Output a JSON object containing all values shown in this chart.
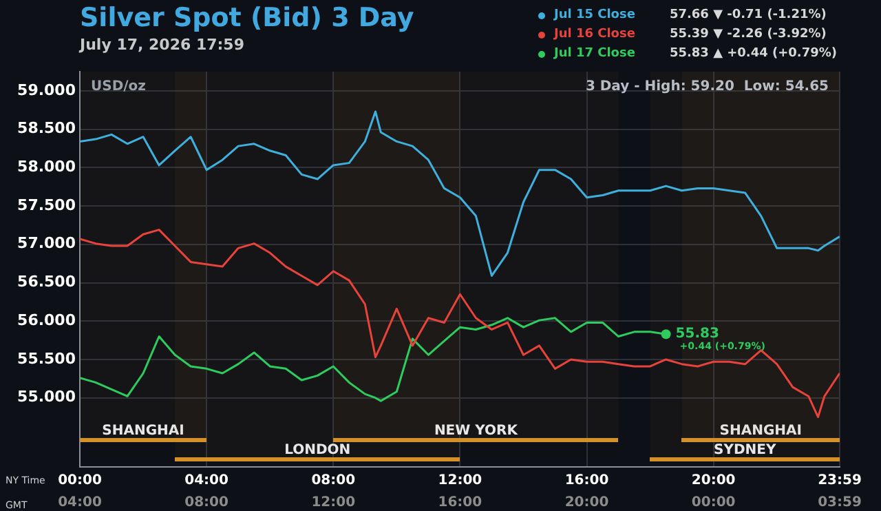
{
  "chart_data": {
    "type": "line",
    "title": "Silver Spot (Bid) 3 Day",
    "subtitle": "July 17, 2026 17:59",
    "xlabel": "NY Time",
    "x2label": "GMT",
    "x": [
      0,
      0.5,
      1,
      1.5,
      2,
      2.5,
      3,
      3.5,
      4,
      4.5,
      5,
      5.5,
      6,
      6.5,
      7,
      7.5,
      8,
      8.5,
      9,
      9.33,
      9.5,
      10,
      10.5,
      11,
      11.5,
      12,
      12.5,
      13,
      13.5,
      14,
      14.5,
      15,
      15.5,
      16,
      16.5,
      17,
      17.5,
      18,
      18.5,
      19,
      19.5,
      20,
      20.5,
      21,
      21.5,
      22,
      22.5,
      23,
      23.3,
      23.5,
      23.98
    ],
    "series": [
      {
        "name": "Jul 15 Close",
        "color": "#3fb0dd",
        "values": [
          58.34,
          58.37,
          58.43,
          58.31,
          58.4,
          58.03,
          58.22,
          58.4,
          57.97,
          58.1,
          58.28,
          58.31,
          58.22,
          58.16,
          57.91,
          57.85,
          58.03,
          58.06,
          58.34,
          58.73,
          58.46,
          58.34,
          58.28,
          58.1,
          57.73,
          57.61,
          57.37,
          56.59,
          56.89,
          57.55,
          57.97,
          57.97,
          57.85,
          57.61,
          57.64,
          57.7,
          57.7,
          57.7,
          57.76,
          57.7,
          57.73,
          57.73,
          57.7,
          57.67,
          57.37,
          56.95,
          56.95,
          56.95,
          56.92,
          56.98,
          57.1
        ]
      },
      {
        "name": "Jul 16 Close",
        "color": "#e8433b",
        "values": [
          57.07,
          57.01,
          56.98,
          56.98,
          57.13,
          57.19,
          56.98,
          56.77,
          56.74,
          56.71,
          56.95,
          57.01,
          56.89,
          56.71,
          56.59,
          56.47,
          56.65,
          56.53,
          56.22,
          55.53,
          55.68,
          56.16,
          55.68,
          56.04,
          55.98,
          56.35,
          56.04,
          55.89,
          55.98,
          55.56,
          55.68,
          55.38,
          55.5,
          55.47,
          55.47,
          55.44,
          55.41,
          55.41,
          55.5,
          55.44,
          55.41,
          55.47,
          55.47,
          55.44,
          55.62,
          55.44,
          55.14,
          55.02,
          54.75,
          55.02,
          55.32
        ]
      },
      {
        "name": "Jul 17 Close",
        "color": "#2ecc5e",
        "values": [
          55.26,
          55.2,
          55.11,
          55.02,
          55.32,
          55.8,
          55.56,
          55.41,
          55.38,
          55.32,
          55.44,
          55.59,
          55.41,
          55.38,
          55.23,
          55.29,
          55.41,
          55.2,
          55.05,
          55.0,
          54.96,
          55.08,
          55.77,
          55.56,
          55.74,
          55.92,
          55.89,
          55.95,
          56.04,
          55.92,
          56.01,
          56.04,
          55.86,
          55.98,
          55.98,
          55.8,
          55.86,
          55.86,
          55.83,
          null,
          null,
          null,
          null,
          null,
          null,
          null,
          null,
          null,
          null,
          null,
          null
        ]
      }
    ],
    "xlim": [
      0,
      23.983
    ],
    "xticks": [
      {
        "value": 0,
        "label": "00:00"
      },
      {
        "value": 4,
        "label": "04:00"
      },
      {
        "value": 8,
        "label": "08:00"
      },
      {
        "value": 12,
        "label": "12:00"
      },
      {
        "value": 16,
        "label": "16:00"
      },
      {
        "value": 20,
        "label": "20:00"
      },
      {
        "value": 23.983,
        "label": "23:59"
      }
    ],
    "x2lim": [
      "2026-07-17T04:00",
      "2026-07-18T03:59"
    ],
    "x2ticks": [
      {
        "value": "2026-07-17T04:00",
        "label": "04:00"
      },
      {
        "value": "2026-07-17T08:00",
        "label": "08:00"
      },
      {
        "value": "2026-07-17T12:00",
        "label": "12:00"
      },
      {
        "value": "2026-07-17T16:00",
        "label": "16:00"
      },
      {
        "value": "2026-07-17T20:00",
        "label": "20:00"
      },
      {
        "value": "2026-07-18T00:00",
        "label": "00:00"
      },
      {
        "value": "2026-07-18T03:59",
        "label": "03:59"
      }
    ],
    "ylim": [
      54.1,
      59.25
    ],
    "yticks": [
      {
        "value": 55,
        "label": "55.000"
      },
      {
        "value": 55.5,
        "label": "55.500"
      },
      {
        "value": 56,
        "label": "56.000"
      },
      {
        "value": 56.5,
        "label": "56.500"
      },
      {
        "value": 57,
        "label": "57.000"
      },
      {
        "value": 57.5,
        "label": "57.500"
      },
      {
        "value": 58,
        "label": "58.000"
      },
      {
        "value": 58.5,
        "label": "58.500"
      },
      {
        "value": 59,
        "label": "59.000"
      }
    ],
    "bands": [
      {
        "axis": "x",
        "from": 0,
        "to": 4,
        "label": "SHANGHAI",
        "color": "#d4912a"
      },
      {
        "axis": "x",
        "from": 3,
        "to": 12,
        "label": "LONDON",
        "color": "#d4912a"
      },
      {
        "axis": "x",
        "from": 8,
        "to": 17,
        "label": "NEW YORK",
        "color": "#d4912a"
      },
      {
        "axis": "x",
        "from": 19,
        "to": 23.983,
        "label": "SHANGHAI",
        "color": "#d4912a"
      },
      {
        "axis": "x",
        "from": 18,
        "to": 23.983,
        "label": "SYDNEY",
        "color": "#d4912a"
      }
    ],
    "annotations": [
      "USD/oz",
      "3 Day - High: 59.20  Low: 54.65",
      {
        "text": "55.83",
        "x": 18.5,
        "y": 55.83
      },
      {
        "text": "+0.44 (+0.79%)",
        "x": 18.5,
        "y": 55.83
      },
      "57.66 ▼ -0.71 (-1.21%)",
      "55.39 ▼ -2.26 (-3.92%)",
      "55.83 ▲ +0.44 (+0.79%)"
    ],
    "grid": true,
    "legend": "top right",
    "marker": "none",
    "line_style": "solid"
  }
}
